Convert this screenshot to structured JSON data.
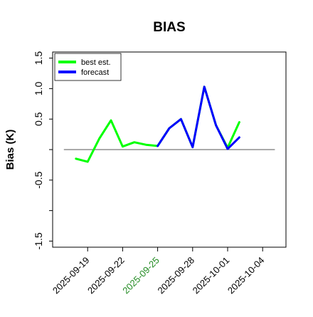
{
  "chart_data": {
    "type": "line",
    "title": "BIAS",
    "xlabel": "",
    "ylabel": "Bias (K)",
    "x_range": [
      "2025-09-16",
      "2025-10-06"
    ],
    "ylim": [
      -1.6,
      1.6
    ],
    "y_ticks": [
      -1.5,
      -1.0,
      -0.5,
      0.0,
      0.5,
      1.0,
      1.5
    ],
    "y_tick_labels": [
      "-1.5",
      "",
      "-0.5",
      "",
      "0.5",
      "1.0",
      "1.5"
    ],
    "x_ticks": [
      "2025-09-19",
      "2025-09-22",
      "2025-09-25",
      "2025-09-28",
      "2025-10-01",
      "2025-10-04"
    ],
    "x_tick_labels": [
      "2025-09-19",
      "2025-09-22",
      "2025-09-25",
      "2025-09-28",
      "2025-10-01",
      "2025-10-04"
    ],
    "x_tick_label_colors": [
      "#000000",
      "#000000",
      "#228b22",
      "#000000",
      "#000000",
      "#000000"
    ],
    "reference_line": 0.0,
    "grid": false,
    "legend_position": "top-left",
    "series": [
      {
        "name": "best est.",
        "color": "#00ff00",
        "x": [
          "2025-09-18",
          "2025-09-19",
          "2025-09-20",
          "2025-09-21",
          "2025-09-22",
          "2025-09-23",
          "2025-09-24",
          "2025-09-25",
          "2025-09-26",
          "2025-09-27",
          "2025-09-28",
          "2025-09-29",
          "2025-09-30",
          "2025-10-01",
          "2025-10-02"
        ],
        "values": [
          -0.15,
          -0.2,
          0.18,
          0.48,
          0.05,
          0.12,
          0.08,
          0.06,
          0.35,
          0.5,
          0.04,
          1.03,
          0.4,
          0.03,
          0.45
        ]
      },
      {
        "name": "forecast",
        "color": "#0000ff",
        "x": [
          "2025-09-25",
          "2025-09-26",
          "2025-09-27",
          "2025-09-28",
          "2025-09-29",
          "2025-09-30",
          "2025-10-01",
          "2025-10-02"
        ],
        "values": [
          0.06,
          0.35,
          0.5,
          0.04,
          1.03,
          0.4,
          0.01,
          0.2
        ]
      }
    ]
  }
}
